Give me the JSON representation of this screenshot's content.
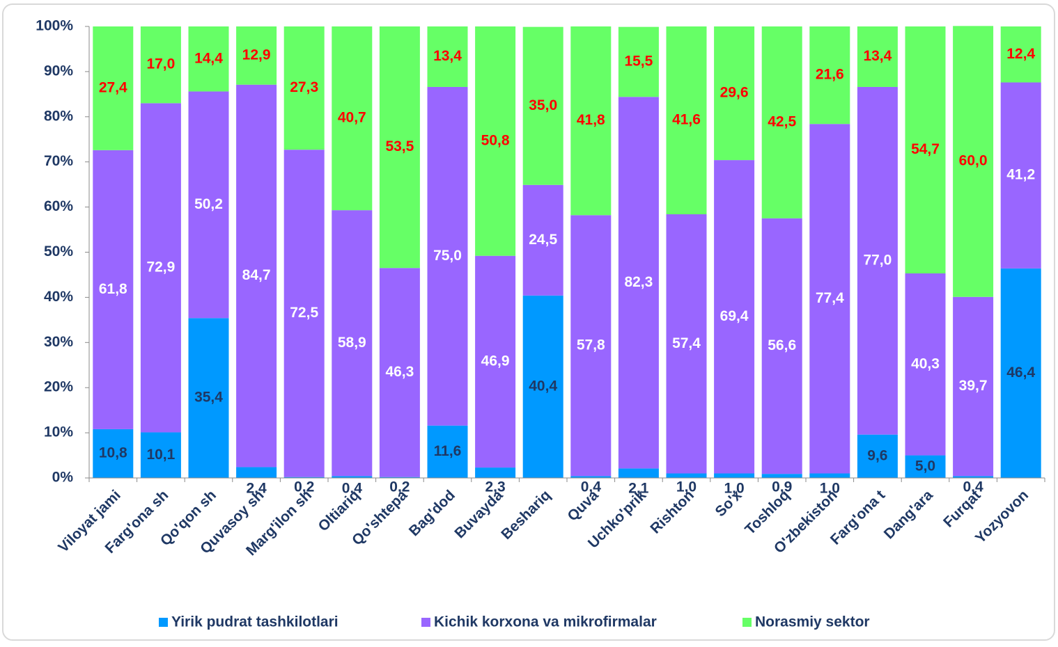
{
  "chart_data": {
    "type": "stacked_bar_100",
    "categories": [
      "Viloyat jami",
      "Farg'ona sh",
      "Qo'qon sh",
      "Quvasoy sh",
      "Marg'ilon sh",
      "Oltiariq",
      "Qo'shtepa",
      "Bag'dod",
      "Buvayda",
      "Beshariq",
      "Quva",
      "Uchko'prik",
      "Rishton",
      "So'x",
      "Toshloq",
      "O'zbekiston",
      "Farg'ona t",
      "Dang'ara",
      "Furqat",
      "Yozyovon"
    ],
    "series": [
      {
        "name": "Yirik pudrat tashkilotlari",
        "color": "#0099ff",
        "label_color": "#1f3864",
        "values": [
          10.8,
          10.1,
          35.4,
          2.4,
          0.2,
          0.4,
          0.2,
          11.6,
          2.3,
          40.4,
          0.4,
          2.1,
          1.0,
          1.0,
          0.9,
          1.0,
          9.6,
          5.0,
          0.4,
          46.4
        ],
        "value_labels": [
          "10,8",
          "10,1",
          "35,4",
          "2,4",
          "0,2",
          "0,4",
          "0,2",
          "11,6",
          "2,3",
          "40,4",
          "0,4",
          "2,1",
          "1,0",
          "1,0",
          "0,9",
          "1,0",
          "9,6",
          "5,0",
          "0,4",
          "46,4"
        ]
      },
      {
        "name": "Kichik korxona va mikrofirmalar",
        "color": "#9966ff",
        "label_color": "#ffffff",
        "values": [
          61.8,
          72.9,
          50.2,
          84.7,
          72.5,
          58.9,
          46.3,
          75.0,
          46.9,
          24.5,
          57.8,
          82.3,
          57.4,
          69.4,
          56.6,
          77.4,
          77.0,
          40.3,
          39.7,
          41.2
        ],
        "value_labels": [
          "61,8",
          "72,9",
          "50,2",
          "84,7",
          "72,5",
          "58,9",
          "46,3",
          "75,0",
          "46,9",
          "24,5",
          "57,8",
          "82,3",
          "57,4",
          "69,4",
          "56,6",
          "77,4",
          "77,0",
          "40,3",
          "39,7",
          "41,2"
        ]
      },
      {
        "name": "Norasmiy sektor",
        "color": "#66ff66",
        "label_color": "#ff0000",
        "values": [
          27.4,
          17.0,
          14.4,
          12.9,
          27.3,
          40.7,
          53.5,
          13.4,
          50.8,
          35.0,
          41.8,
          15.5,
          41.6,
          29.6,
          42.5,
          21.6,
          13.4,
          54.7,
          60.0,
          12.4
        ],
        "value_labels": [
          "27,4",
          "17,0",
          "14,4",
          "12,9",
          "27,3",
          "40,7",
          "53,5",
          "13,4",
          "50,8",
          "35,0",
          "41,8",
          "15,5",
          "41,6",
          "29,6",
          "42,5",
          "21,6",
          "13,4",
          "54,7",
          "60,0",
          "12,4"
        ]
      }
    ],
    "ylim": [
      0,
      100
    ],
    "yticks": [
      {
        "value": 0,
        "label": "0%"
      },
      {
        "value": 10,
        "label": "10%"
      },
      {
        "value": 20,
        "label": "20%"
      },
      {
        "value": 30,
        "label": "30%"
      },
      {
        "value": 40,
        "label": "40%"
      },
      {
        "value": 50,
        "label": "50%"
      },
      {
        "value": 60,
        "label": "60%"
      },
      {
        "value": 70,
        "label": "70%"
      },
      {
        "value": 80,
        "label": "80%"
      },
      {
        "value": 90,
        "label": "90%"
      },
      {
        "value": 100,
        "label": "100%"
      }
    ],
    "grid": false,
    "legend": "bottom"
  }
}
